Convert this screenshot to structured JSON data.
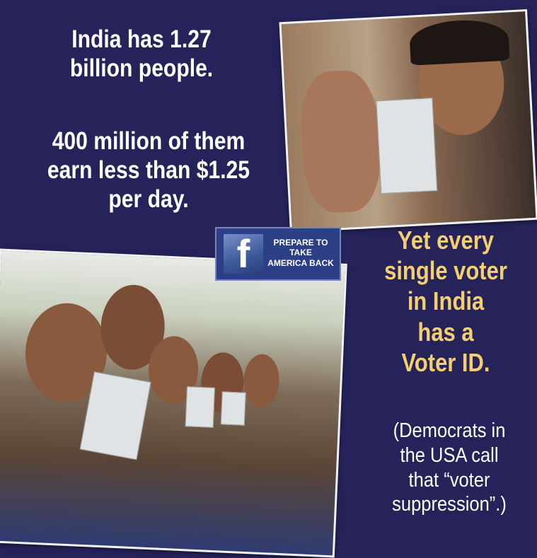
{
  "headline_lines": [
    "India has 1.27",
    "billion people."
  ],
  "stat_lines": [
    "400 million of them",
    "earn less than $1.25",
    "per day."
  ],
  "voter_lines": [
    "Yet every",
    "single voter",
    "in India",
    "has a",
    "Voter ID."
  ],
  "note_lines": [
    "(Democrats in",
    "the USA call",
    "that “voter",
    "suppression”.)"
  ],
  "badge": {
    "logo_letter": "f",
    "lines": [
      "PREPARE TO",
      "TAKE",
      "AMERICA BACK"
    ]
  },
  "colors": {
    "background": "#25235a",
    "accent_text": "#f3cf72",
    "text": "#ffffff",
    "badge": "#2d3f86"
  }
}
